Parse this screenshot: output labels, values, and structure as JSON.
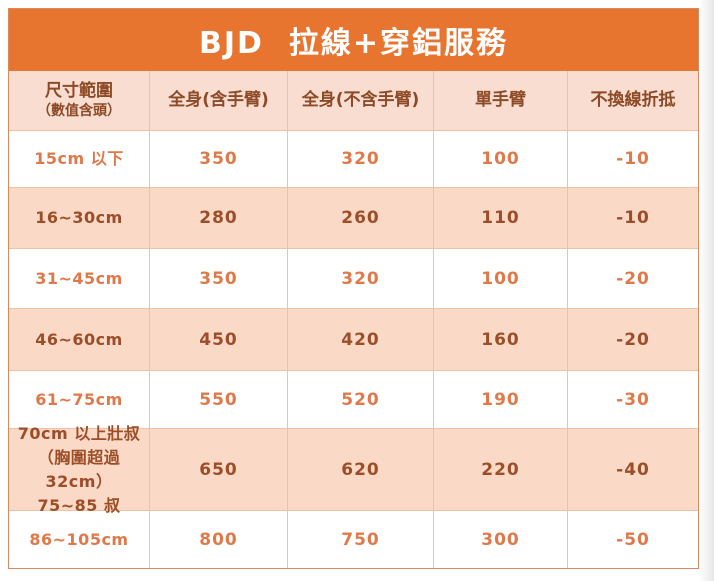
{
  "title": "BJD  拉線+穿鋁服務",
  "colors": {
    "orange": "#e7742f",
    "header-bg": "#f8ddd0",
    "alt-bg": "#fbd9c7",
    "text-light": "#e0794a",
    "text-dark": "#9c4e28",
    "header-text": "#8d4a26",
    "line": "#f0c2a4",
    "outer": "#d98a5a"
  },
  "table": {
    "headers": {
      "size_range": "尺寸範圍",
      "size_range_note": "（數值含頭）",
      "full_with_arms": "全身(含手臂)",
      "full_without_arms": "全身(不含手臂)",
      "single_arm": "單手臂",
      "no_rewire_discount": "不換線折抵"
    },
    "rows": [
      {
        "size": "15cm 以下",
        "full_with_arms": "350",
        "full_without_arms": "320",
        "single_arm": "100",
        "no_rewire_discount": "-10"
      },
      {
        "size": "16~30cm",
        "full_with_arms": "280",
        "full_without_arms": "260",
        "single_arm": "110",
        "no_rewire_discount": "-10"
      },
      {
        "size": "31~45cm",
        "full_with_arms": "350",
        "full_without_arms": "320",
        "single_arm": "100",
        "no_rewire_discount": "-20"
      },
      {
        "size": "46~60cm",
        "full_with_arms": "450",
        "full_without_arms": "420",
        "single_arm": "160",
        "no_rewire_discount": "-20"
      },
      {
        "size": "61~75cm",
        "full_with_arms": "550",
        "full_without_arms": "520",
        "single_arm": "190",
        "no_rewire_discount": "-30"
      },
      {
        "size": "70cm 以上壯叔\n（胸圍超過 32cm）\n75~85 叔",
        "full_with_arms": "650",
        "full_without_arms": "620",
        "single_arm": "220",
        "no_rewire_discount": "-40"
      },
      {
        "size": "86~105cm",
        "full_with_arms": "800",
        "full_without_arms": "750",
        "single_arm": "300",
        "no_rewire_discount": "-50"
      }
    ]
  }
}
